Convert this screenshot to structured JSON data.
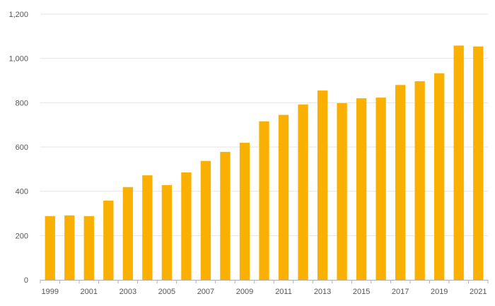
{
  "chart_data": {
    "type": "bar",
    "title": "",
    "xlabel": "",
    "ylabel": "",
    "categories": [
      "1999",
      "2000",
      "2001",
      "2002",
      "2003",
      "2004",
      "2005",
      "2006",
      "2007",
      "2008",
      "2009",
      "2010",
      "2011",
      "2012",
      "2013",
      "2014",
      "2015",
      "2016",
      "2017",
      "2018",
      "2019",
      "2020",
      "2021"
    ],
    "x_tick_labels": [
      "1999",
      "2001",
      "2003",
      "2005",
      "2007",
      "2009",
      "2011",
      "2013",
      "2015",
      "2017",
      "2019",
      "2021"
    ],
    "values": [
      288,
      291,
      288,
      358,
      419,
      472,
      428,
      485,
      537,
      578,
      619,
      716,
      745,
      792,
      855,
      798,
      820,
      823,
      880,
      897,
      933,
      1058,
      1054
    ],
    "ylim": [
      0,
      1200
    ],
    "y_ticks": [
      0,
      200,
      400,
      600,
      800,
      1000,
      1200
    ],
    "y_tick_labels": [
      "0",
      "200",
      "400",
      "600",
      "800",
      "1,000",
      "1,200"
    ],
    "grid": true,
    "legend": "none",
    "bar_color": "#f9b000"
  }
}
